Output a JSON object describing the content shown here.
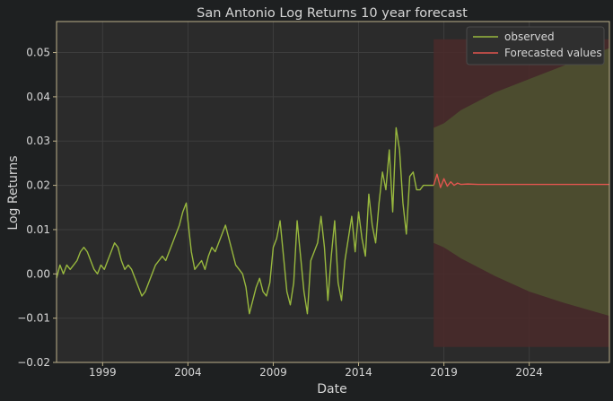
{
  "chart_data": {
    "type": "line",
    "title": "San Antonio Log Returns 10 year forecast",
    "xlabel": "Date",
    "ylabel": "Log Returns",
    "xlim": [
      1996.3,
      2028.7
    ],
    "ylim": [
      -0.02,
      0.057
    ],
    "x_ticks": [
      {
        "value": 1999,
        "label": "1999"
      },
      {
        "value": 2004,
        "label": "2004"
      },
      {
        "value": 2009,
        "label": "2009"
      },
      {
        "value": 2014,
        "label": "2014"
      },
      {
        "value": 2019,
        "label": "2019"
      },
      {
        "value": 2024,
        "label": "2024"
      }
    ],
    "y_ticks": [
      {
        "value": -0.02,
        "label": "−0.02"
      },
      {
        "value": -0.01,
        "label": "−0.01"
      },
      {
        "value": 0.0,
        "label": "0.00"
      },
      {
        "value": 0.01,
        "label": "0.01"
      },
      {
        "value": 0.02,
        "label": "0.02"
      },
      {
        "value": 0.03,
        "label": "0.03"
      },
      {
        "value": 0.04,
        "label": "0.04"
      },
      {
        "value": 0.05,
        "label": "0.05"
      }
    ],
    "grid": true,
    "legend_position": "top-right",
    "series": [
      {
        "name": "observed",
        "color": "#98b83e",
        "x": [
          1996.3,
          1996.5,
          1996.7,
          1996.9,
          1997.1,
          1997.3,
          1997.5,
          1997.7,
          1997.9,
          1998.1,
          1998.3,
          1998.5,
          1998.7,
          1998.9,
          1999.1,
          1999.3,
          1999.5,
          1999.7,
          1999.9,
          2000.1,
          2000.3,
          2000.5,
          2000.7,
          2000.9,
          2001.1,
          2001.3,
          2001.5,
          2001.7,
          2001.9,
          2002.1,
          2002.3,
          2002.5,
          2002.7,
          2002.9,
          2003.1,
          2003.3,
          2003.5,
          2003.7,
          2003.9,
          2004.0,
          2004.2,
          2004.4,
          2004.6,
          2004.8,
          2005.0,
          2005.2,
          2005.4,
          2005.6,
          2005.8,
          2006.0,
          2006.2,
          2006.4,
          2006.6,
          2006.8,
          2007.0,
          2007.2,
          2007.4,
          2007.6,
          2007.8,
          2008.0,
          2008.2,
          2008.4,
          2008.6,
          2008.8,
          2009.0,
          2009.2,
          2009.4,
          2009.6,
          2009.8,
          2010.0,
          2010.2,
          2010.4,
          2010.6,
          2010.8,
          2011.0,
          2011.2,
          2011.4,
          2011.6,
          2011.8,
          2012.0,
          2012.2,
          2012.4,
          2012.6,
          2012.8,
          2013.0,
          2013.2,
          2013.4,
          2013.6,
          2013.8,
          2014.0,
          2014.2,
          2014.4,
          2014.6,
          2014.8,
          2015.0,
          2015.2,
          2015.4,
          2015.6,
          2015.8,
          2016.0,
          2016.2,
          2016.4,
          2016.6,
          2016.8,
          2017.0,
          2017.2,
          2017.4,
          2017.6,
          2017.8,
          2018.0,
          2018.2,
          2018.4
        ],
        "y": [
          -0.001,
          0.002,
          0.0,
          0.002,
          0.001,
          0.002,
          0.003,
          0.005,
          0.006,
          0.005,
          0.003,
          0.001,
          0.0,
          0.002,
          0.001,
          0.003,
          0.005,
          0.007,
          0.006,
          0.003,
          0.001,
          0.002,
          0.001,
          -0.001,
          -0.003,
          -0.005,
          -0.004,
          -0.002,
          0.0,
          0.002,
          0.003,
          0.004,
          0.003,
          0.005,
          0.007,
          0.009,
          0.011,
          0.014,
          0.016,
          0.012,
          0.005,
          0.001,
          0.002,
          0.003,
          0.001,
          0.004,
          0.006,
          0.005,
          0.007,
          0.009,
          0.011,
          0.008,
          0.005,
          0.002,
          0.001,
          0.0,
          -0.003,
          -0.009,
          -0.006,
          -0.003,
          -0.001,
          -0.004,
          -0.005,
          -0.002,
          0.006,
          0.008,
          0.012,
          0.004,
          -0.004,
          -0.007,
          -0.002,
          0.012,
          0.004,
          -0.004,
          -0.009,
          0.003,
          0.005,
          0.007,
          0.013,
          0.006,
          -0.006,
          0.004,
          0.012,
          -0.002,
          -0.006,
          0.003,
          0.008,
          0.013,
          0.005,
          0.014,
          0.008,
          0.004,
          0.018,
          0.011,
          0.007,
          0.016,
          0.023,
          0.019,
          0.028,
          0.014,
          0.033,
          0.028,
          0.016,
          0.009,
          0.022,
          0.023,
          0.019,
          0.019,
          0.02,
          0.02,
          0.02,
          0.02
        ]
      },
      {
        "name": "Forecasted values",
        "color": "#e0554f",
        "x": [
          2018.4,
          2018.6,
          2018.8,
          2019.0,
          2019.2,
          2019.4,
          2019.6,
          2019.8,
          2020.0,
          2020.4,
          2021.0,
          2022.0,
          2024.0,
          2026.0,
          2028.7
        ],
        "y": [
          0.02,
          0.0225,
          0.0195,
          0.0215,
          0.0198,
          0.0208,
          0.02,
          0.0205,
          0.0202,
          0.0203,
          0.0202,
          0.0202,
          0.0202,
          0.0202,
          0.0202
        ]
      }
    ],
    "confidence_bands": [
      {
        "color": "#4a2a2a",
        "x": [
          2018.4,
          2028.7
        ],
        "lower": [
          -0.0165,
          -0.0165
        ],
        "upper": [
          0.053,
          0.053
        ]
      },
      {
        "color": "#4d5230",
        "x": [
          2018.4,
          2019.0,
          2020.0,
          2022.0,
          2024.0,
          2026.0,
          2028.7
        ],
        "lower": [
          0.007,
          0.006,
          0.0035,
          -0.0005,
          -0.004,
          -0.0065,
          -0.0095
        ],
        "upper": [
          0.033,
          0.034,
          0.037,
          0.041,
          0.044,
          0.047,
          0.051
        ]
      }
    ]
  }
}
